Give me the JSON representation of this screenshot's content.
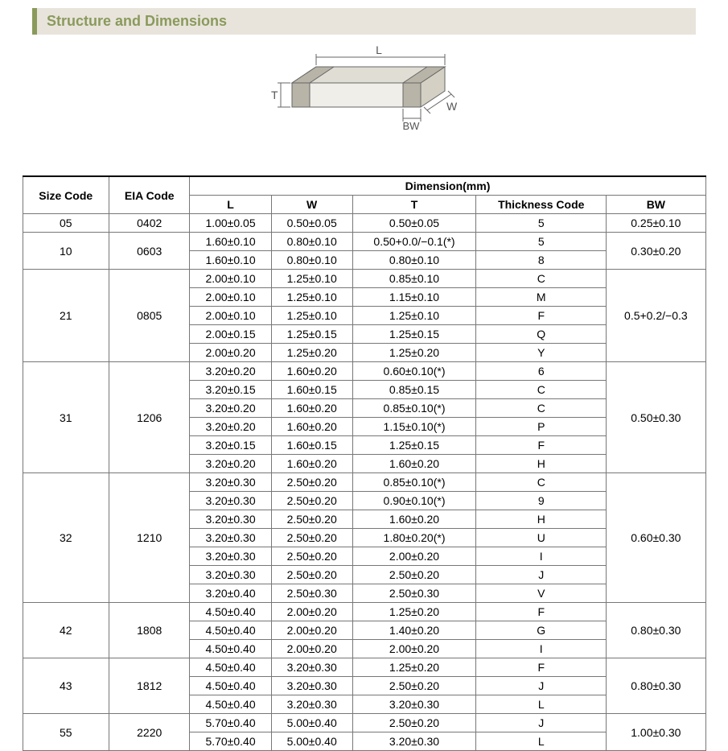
{
  "title": "Structure and Dimensions",
  "diagram": {
    "labels": {
      "L": "L",
      "W": "W",
      "T": "T",
      "BW": "BW"
    },
    "stroke": "#666666",
    "fill_front": "#f0eee8",
    "fill_top": "#e0ddd4",
    "fill_side": "#d4d0c4",
    "bw_fill": "#b8b4a8"
  },
  "table": {
    "headers": {
      "size_code": "Size Code",
      "eia_code": "EIA Code",
      "dimension": "Dimension(mm)",
      "L": "L",
      "W": "W",
      "T": "T",
      "thickness_code": "Thickness Code",
      "BW": "BW"
    },
    "groups": [
      {
        "size_code": "05",
        "eia_code": "0402",
        "bw": "0.25±0.10",
        "rows": [
          {
            "L": "1.00±0.05",
            "W": "0.50±0.05",
            "T": "0.50±0.05",
            "tc": "5"
          }
        ]
      },
      {
        "size_code": "10",
        "eia_code": "0603",
        "bw": "0.30±0.20",
        "rows": [
          {
            "L": "1.60±0.10",
            "W": "0.80±0.10",
            "T": "0.50+0.0/−0.1(*)",
            "tc": "5"
          },
          {
            "L": "1.60±0.10",
            "W": "0.80±0.10",
            "T": "0.80±0.10",
            "tc": "8"
          }
        ]
      },
      {
        "size_code": "21",
        "eia_code": "0805",
        "bw": "0.5+0.2/−0.3",
        "rows": [
          {
            "L": "2.00±0.10",
            "W": "1.25±0.10",
            "T": "0.85±0.10",
            "tc": "C"
          },
          {
            "L": "2.00±0.10",
            "W": "1.25±0.10",
            "T": "1.15±0.10",
            "tc": "M"
          },
          {
            "L": "2.00±0.10",
            "W": "1.25±0.10",
            "T": "1.25±0.10",
            "tc": "F"
          },
          {
            "L": "2.00±0.15",
            "W": "1.25±0.15",
            "T": "1.25±0.15",
            "tc": "Q"
          },
          {
            "L": "2.00±0.20",
            "W": "1.25±0.20",
            "T": "1.25±0.20",
            "tc": "Y"
          }
        ]
      },
      {
        "size_code": "31",
        "eia_code": "1206",
        "bw": "0.50±0.30",
        "rows": [
          {
            "L": "3.20±0.20",
            "W": "1.60±0.20",
            "T": "0.60±0.10(*)",
            "tc": "6"
          },
          {
            "L": "3.20±0.15",
            "W": "1.60±0.15",
            "T": "0.85±0.15",
            "tc": "C"
          },
          {
            "L": "3.20±0.20",
            "W": "1.60±0.20",
            "T": "0.85±0.10(*)",
            "tc": "C"
          },
          {
            "L": "3.20±0.20",
            "W": "1.60±0.20",
            "T": "1.15±0.10(*)",
            "tc": "P"
          },
          {
            "L": "3.20±0.15",
            "W": "1.60±0.15",
            "T": "1.25±0.15",
            "tc": "F"
          },
          {
            "L": "3.20±0.20",
            "W": "1.60±0.20",
            "T": "1.60±0.20",
            "tc": "H"
          }
        ]
      },
      {
        "size_code": "32",
        "eia_code": "1210",
        "bw": "0.60±0.30",
        "rows": [
          {
            "L": "3.20±0.30",
            "W": "2.50±0.20",
            "T": "0.85±0.10(*)",
            "tc": "C"
          },
          {
            "L": "3.20±0.30",
            "W": "2.50±0.20",
            "T": "0.90±0.10(*)",
            "tc": "9"
          },
          {
            "L": "3.20±0.30",
            "W": "2.50±0.20",
            "T": "1.60±0.20",
            "tc": "H"
          },
          {
            "L": "3.20±0.30",
            "W": "2.50±0.20",
            "T": "1.80±0.20(*)",
            "tc": "U"
          },
          {
            "L": "3.20±0.30",
            "W": "2.50±0.20",
            "T": "2.00±0.20",
            "tc": "I"
          },
          {
            "L": "3.20±0.30",
            "W": "2.50±0.20",
            "T": "2.50±0.20",
            "tc": "J"
          },
          {
            "L": "3.20±0.40",
            "W": "2.50±0.30",
            "T": "2.50±0.30",
            "tc": "V"
          }
        ]
      },
      {
        "size_code": "42",
        "eia_code": "1808",
        "bw": "0.80±0.30",
        "rows": [
          {
            "L": "4.50±0.40",
            "W": "2.00±0.20",
            "T": "1.25±0.20",
            "tc": "F"
          },
          {
            "L": "4.50±0.40",
            "W": "2.00±0.20",
            "T": "1.40±0.20",
            "tc": "G"
          },
          {
            "L": "4.50±0.40",
            "W": "2.00±0.20",
            "T": "2.00±0.20",
            "tc": "I"
          }
        ]
      },
      {
        "size_code": "43",
        "eia_code": "1812",
        "bw": "0.80±0.30",
        "rows": [
          {
            "L": "4.50±0.40",
            "W": "3.20±0.30",
            "T": "1.25±0.20",
            "tc": "F"
          },
          {
            "L": "4.50±0.40",
            "W": "3.20±0.30",
            "T": "2.50±0.20",
            "tc": "J"
          },
          {
            "L": "4.50±0.40",
            "W": "3.20±0.30",
            "T": "3.20±0.30",
            "tc": "L"
          }
        ]
      },
      {
        "size_code": "55",
        "eia_code": "2220",
        "bw": "1.00±0.30",
        "rows": [
          {
            "L": "5.70±0.40",
            "W": "5.00±0.40",
            "T": "2.50±0.20",
            "tc": "J"
          },
          {
            "L": "5.70±0.40",
            "W": "5.00±0.40",
            "T": "3.20±0.30",
            "tc": "L"
          }
        ]
      }
    ]
  }
}
